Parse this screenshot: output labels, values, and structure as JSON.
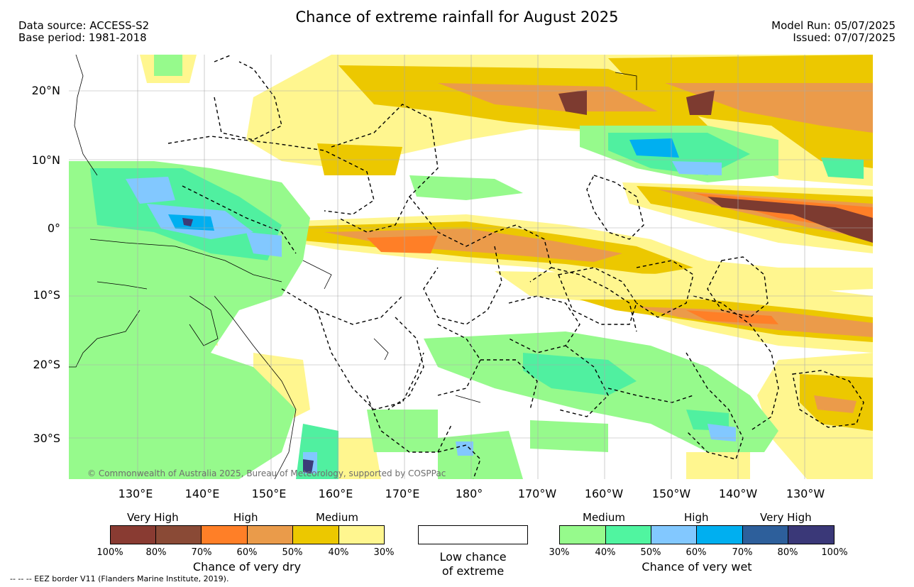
{
  "header": {
    "title": "Chance of extreme rainfall for August 2025",
    "data_source": "Data source: ACCESS-S2",
    "base_period": "Base period: 1981-2018",
    "model_run": "Model Run: 05/07/2025",
    "issued": "Issued: 07/07/2025"
  },
  "map": {
    "lat_labels": [
      "20°N",
      "10°N",
      "0°",
      "10°S",
      "20°S",
      "30°S"
    ],
    "lon_labels": [
      "130°E",
      "140°E",
      "150°E",
      "160°E",
      "170°E",
      "180°",
      "170°W",
      "160°W",
      "150°W",
      "140°W",
      "130°W"
    ],
    "copyright": "© Commonwealth of Australia 2025, Bureau of Meteorology, supported by COSPPac",
    "colors": {
      "dry_30": "#fff68f",
      "dry_40": "#ecc800",
      "dry_50": "#eb9b4a",
      "dry_60": "#ff7f27",
      "dry_70": "#8b4c3a",
      "dry_80": "#7d3b30",
      "wet_30": "#96fa8c",
      "wet_40": "#50f0a0",
      "wet_50": "#82c8ff",
      "wet_60": "#00aff0",
      "wet_70": "#325f9b",
      "wet_80": "#3c3c78"
    }
  },
  "legend": {
    "dry": {
      "group_labels": [
        "Very High",
        "High",
        "Medium"
      ],
      "ticks": [
        "100%",
        "80%",
        "70%",
        "60%",
        "50%",
        "40%",
        "30%"
      ],
      "caption": "Chance of very dry",
      "colors": [
        "#893b32",
        "#8a4a36",
        "#ff7f27",
        "#ea9b4a",
        "#ecc800",
        "#fff68f"
      ]
    },
    "low": {
      "caption_line1": "Low chance",
      "caption_line2": "of extreme"
    },
    "wet": {
      "group_labels": [
        "Medium",
        "High",
        "Very High"
      ],
      "ticks": [
        "30%",
        "40%",
        "50%",
        "60%",
        "70%",
        "80%",
        "100%"
      ],
      "caption": "Chance of very wet",
      "colors": [
        "#96fa8c",
        "#50f5a0",
        "#82c8ff",
        "#00aff0",
        "#2d5f9b",
        "#3a3878"
      ]
    }
  },
  "footer": {
    "eez_note": "-- -- -- EEZ border V11 (Flanders Marine Institute, 2019)."
  }
}
